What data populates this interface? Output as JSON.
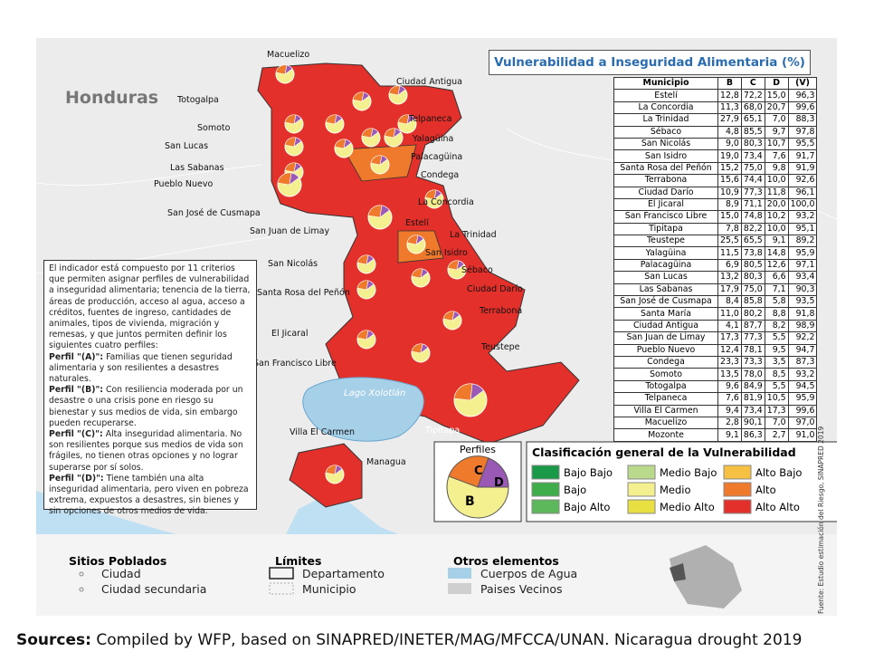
{
  "map": {
    "title": "Vulnerabilidad a Inseguridad Alimentaria (%)",
    "country_label": "Honduras",
    "lake_label": "Lago Xolotlán",
    "place_labels": [
      "Macuelizo",
      "Ciudad Antigua",
      "Totogalpa",
      "Telpaneca",
      "Somoto",
      "Yalagüina",
      "San Lucas",
      "Palacagüina",
      "Las Sabanas",
      "Condega",
      "Pueblo Nuevo",
      "La Concordia",
      "San José de Cusmapa",
      "Estelí",
      "San Juan de Limay",
      "La Trinidad",
      "San Isidro",
      "San Nicolás",
      "Sébaco",
      "Ciudad Darío",
      "Santa Rosa del Peñón",
      "Terrabona",
      "El Jicaral",
      "Teustepe",
      "San Francisco Libre",
      "Tipitapa",
      "Villa El Carmen",
      "Managua"
    ]
  },
  "table": {
    "header": [
      "Municipio",
      "B",
      "C",
      "D",
      "(V)"
    ],
    "rows": [
      [
        "Estelí",
        "12,8",
        "72,2",
        "15,0",
        "96,3"
      ],
      [
        "La Concordia",
        "11,3",
        "68,0",
        "20,7",
        "99,6"
      ],
      [
        "La Trinidad",
        "27,9",
        "65,1",
        "7,0",
        "88,3"
      ],
      [
        "Sébaco",
        "4,8",
        "85,5",
        "9,7",
        "97,8"
      ],
      [
        "San Nicolás",
        "9,0",
        "80,3",
        "10,7",
        "95,5"
      ],
      [
        "San Isidro",
        "19,0",
        "73,4",
        "7,6",
        "91,7"
      ],
      [
        "Santa Rosa del Peñón",
        "15,2",
        "75,0",
        "9,8",
        "91,9"
      ],
      [
        "Terrabona",
        "15,6",
        "74,4",
        "10,0",
        "92,6"
      ],
      [
        "Ciudad Darío",
        "10,9",
        "77,3",
        "11,8",
        "96,1"
      ],
      [
        "El Jicaral",
        "8,9",
        "71,1",
        "20,0",
        "100,0"
      ],
      [
        "San Francisco Libre",
        "15,0",
        "74,8",
        "10,2",
        "93,2"
      ],
      [
        "Tipitapa",
        "7,8",
        "82,2",
        "10,0",
        "95,1"
      ],
      [
        "Teustepe",
        "25,5",
        "65,5",
        "9,1",
        "89,2"
      ],
      [
        "Yalagüina",
        "11,5",
        "73,8",
        "14,8",
        "95,9"
      ],
      [
        "Palacagüina",
        "6,9",
        "80,5",
        "12,6",
        "97,1"
      ],
      [
        "San Lucas",
        "13,2",
        "80,3",
        "6,6",
        "93,4"
      ],
      [
        "Las Sabanas",
        "17,9",
        "75,0",
        "7,1",
        "90,3"
      ],
      [
        "San José de Cusmapa",
        "8,4",
        "85,8",
        "5,8",
        "93,5"
      ],
      [
        "Santa María",
        "11,0",
        "80,2",
        "8,8",
        "91,8"
      ],
      [
        "Ciudad Antigua",
        "4,1",
        "87,7",
        "8,2",
        "98,9"
      ],
      [
        "San Juan de Limay",
        "17,3",
        "77,3",
        "5,5",
        "92,2"
      ],
      [
        "Pueblo Nuevo",
        "12,4",
        "78,1",
        "9,5",
        "94,7"
      ],
      [
        "Condega",
        "23,3",
        "73,3",
        "3,5",
        "87,3"
      ],
      [
        "Somoto",
        "13,5",
        "78,0",
        "8,5",
        "93,2"
      ],
      [
        "Totogalpa",
        "9,6",
        "84,9",
        "5,5",
        "94,5"
      ],
      [
        "Telpaneca",
        "7,6",
        "81,9",
        "10,5",
        "95,9"
      ],
      [
        "Villa El Carmen",
        "9,4",
        "73,4",
        "17,3",
        "99,6"
      ],
      [
        "Macuelizo",
        "2,8",
        "90,1",
        "7,0",
        "97,0"
      ],
      [
        "Mozonte",
        "9,1",
        "86,3",
        "2,7",
        "91,0"
      ]
    ]
  },
  "info_box": {
    "intro": "El indicador está compuesto por 11 criterios que permiten asignar perfiles de vulnerabilidad a inseguridad alimentaria; tenencia de la tierra, áreas de producción, acceso al agua, acceso a créditos, fuentes de ingreso, cantidades de animales, tipos de vivienda, migración y remesas, y que juntos permiten definir los siguientes cuatro perfiles:",
    "profiles": [
      {
        "label": "Perfil \"(A)\":",
        "text": "Familias que tienen seguridad alimentaria y son resilientes a desastres naturales."
      },
      {
        "label": "Perfil \"(B)\":",
        "text": "Con resiliencia moderada por un desastre o una crisis pone en riesgo su bienestar y sus medios de vida, sin embargo pueden recuperarse."
      },
      {
        "label": "Perfil \"(C)\":",
        "text": "Alta inseguridad alimentaria. No son resilientes porque sus medios de vida son frágiles, no tienen otras opciones y no lograr superarse por sí solos."
      },
      {
        "label": "Perfil \"(D)\":",
        "text": "Tiene también una alta inseguridad alimentaria, pero viven en pobreza extrema, expuestos a desastres, sin bienes y sin opciones de otros medios de vida."
      }
    ]
  },
  "profiles_legend": {
    "title": "Perfiles",
    "labels": [
      "C",
      "D",
      "B"
    ]
  },
  "classification_legend": {
    "title": "Clasificación general de la Vulnerabilidad",
    "items": [
      {
        "label": "Bajo Bajo",
        "color": "#1a9a48"
      },
      {
        "label": "Medio Bajo",
        "color": "#b9d98b"
      },
      {
        "label": "Alto Bajo",
        "color": "#f6c143"
      },
      {
        "label": "Bajo",
        "color": "#3fae4a"
      },
      {
        "label": "Medio",
        "color": "#f4ef8f"
      },
      {
        "label": "Alto",
        "color": "#ef7a2c"
      },
      {
        "label": "Bajo Alto",
        "color": "#5cb85a"
      },
      {
        "label": "Medio Alto",
        "color": "#e8df43"
      },
      {
        "label": "Alto Alto",
        "color": "#e3302b"
      }
    ]
  },
  "bottom_legend": [
    {
      "title": "Sitios Poblados",
      "items": [
        "Ciudad",
        "Ciudad secundaria"
      ]
    },
    {
      "title": "Límites",
      "items": [
        "Departamento",
        "Municipio"
      ]
    },
    {
      "title": "Otros elementos",
      "items": [
        "Cuerpos de Agua",
        "Paises Vecinos"
      ]
    }
  ],
  "source_note": "Fuente: Estudio estimación del Riesgo, SINAPRED 2019",
  "footer": {
    "label": "Sources:",
    "text": "Compiled by WFP, based on SINAPRED/INETER/MAG/MFCCA/UNAN. Nicaragua drought 2019"
  }
}
